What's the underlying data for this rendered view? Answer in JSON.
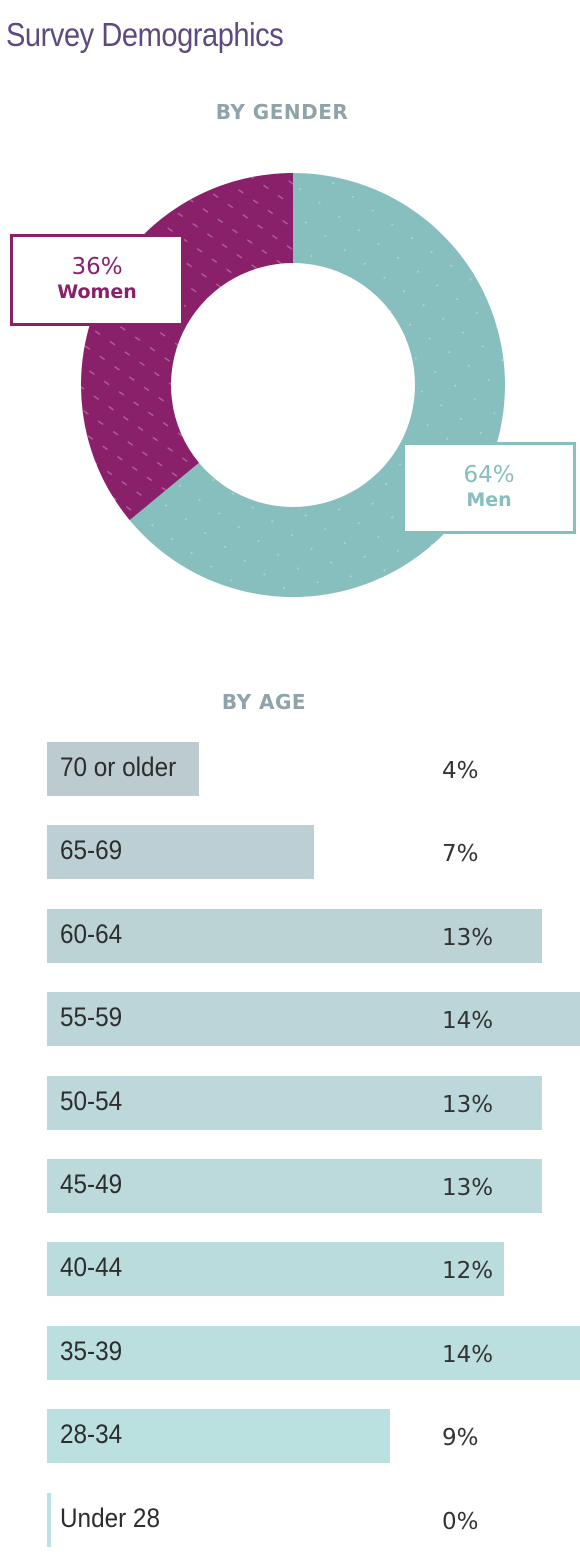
{
  "title": "Survey Demographics",
  "chart_data": [
    {
      "type": "pie",
      "title": "BY GENDER",
      "slices": [
        {
          "name": "Men",
          "value": 64,
          "label": "64%",
          "color": "#86bfbd"
        },
        {
          "name": "Women",
          "value": 36,
          "label": "36%",
          "color": "#8a1f6a"
        }
      ]
    },
    {
      "type": "bar",
      "orientation": "horizontal",
      "title": "BY AGE",
      "categories": [
        "70 or older",
        "65-69",
        "60-64",
        "55-59",
        "50-54",
        "45-49",
        "40-44",
        "35-39",
        "28-34",
        "Under 28"
      ],
      "values": [
        4,
        7,
        13,
        14,
        13,
        13,
        12,
        14,
        9,
        0
      ],
      "labels": [
        "4%",
        "7%",
        "13%",
        "14%",
        "13%",
        "13%",
        "12%",
        "14%",
        "9%",
        "0%"
      ],
      "colors": [
        "#bccbd0",
        "#bccfd4",
        "#bcd3d6",
        "#bcd5d8",
        "#bcd8db",
        "#bcdadc",
        "#bbdcdd",
        "#bbdede",
        "#bbe0e0",
        "#bbe2e2"
      ]
    }
  ]
}
